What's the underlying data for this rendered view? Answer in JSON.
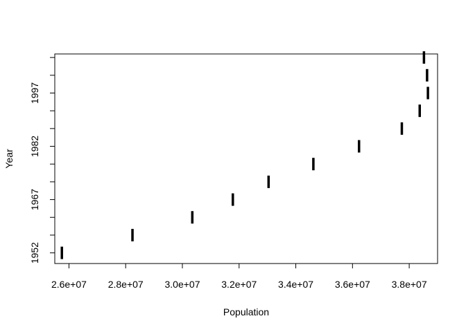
{
  "chart_data": {
    "type": "scatter",
    "title": "",
    "xlabel": "Population",
    "ylabel": "Year",
    "marker": "vertical-bar",
    "marker_color": "#000000",
    "xlim": [
      25500000,
      39000000
    ],
    "ylim": [
      1949,
      2008
    ],
    "x_ticks": [
      {
        "value": 26000000,
        "label": "2.6e+07"
      },
      {
        "value": 28000000,
        "label": "2.8e+07"
      },
      {
        "value": 30000000,
        "label": "3.0e+07"
      },
      {
        "value": 32000000,
        "label": "3.2e+07"
      },
      {
        "value": 34000000,
        "label": "3.4e+07"
      },
      {
        "value": 36000000,
        "label": "3.6e+07"
      },
      {
        "value": 38000000,
        "label": "3.8e+07"
      }
    ],
    "y_ticks": [
      {
        "value": 1952,
        "label": "1952"
      },
      {
        "value": 1957,
        "label": ""
      },
      {
        "value": 1962,
        "label": ""
      },
      {
        "value": 1967,
        "label": "1967"
      },
      {
        "value": 1972,
        "label": ""
      },
      {
        "value": 1977,
        "label": ""
      },
      {
        "value": 1982,
        "label": "1982"
      },
      {
        "value": 1987,
        "label": ""
      },
      {
        "value": 1992,
        "label": ""
      },
      {
        "value": 1997,
        "label": "1997"
      },
      {
        "value": 2002,
        "label": ""
      },
      {
        "value": 2007,
        "label": ""
      }
    ],
    "points": [
      {
        "x": 25750000,
        "y": 1952
      },
      {
        "x": 28240000,
        "y": 1957
      },
      {
        "x": 30350000,
        "y": 1962
      },
      {
        "x": 31780000,
        "y": 1967
      },
      {
        "x": 33040000,
        "y": 1972
      },
      {
        "x": 34620000,
        "y": 1977
      },
      {
        "x": 36230000,
        "y": 1982
      },
      {
        "x": 37740000,
        "y": 1987
      },
      {
        "x": 38370000,
        "y": 1992
      },
      {
        "x": 38660000,
        "y": 1997
      },
      {
        "x": 38630000,
        "y": 2002
      },
      {
        "x": 38520000,
        "y": 2007
      }
    ]
  }
}
